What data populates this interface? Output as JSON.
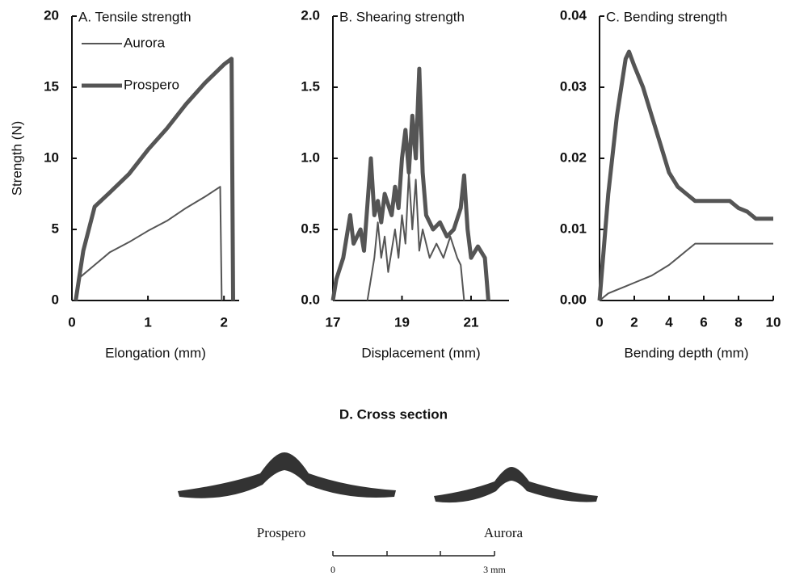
{
  "chart_data": [
    {
      "type": "line",
      "title": "A. Tensile strength",
      "x_label": "Elongation (mm)",
      "y_label": "Strength (N)",
      "xlim": [
        0,
        2.2
      ],
      "ylim": [
        0,
        20
      ],
      "xticks": [
        0,
        1,
        2
      ],
      "yticks": [
        0,
        5,
        10,
        15,
        20
      ],
      "legend": "upper left",
      "series": [
        {
          "name": "Aurora",
          "color": "#555555",
          "width": 2,
          "x": [
            0.05,
            0.1,
            0.3,
            0.5,
            0.75,
            1.0,
            1.25,
            1.5,
            1.75,
            1.95,
            1.97
          ],
          "values": [
            0,
            1.6,
            2.5,
            3.4,
            4.1,
            4.9,
            5.6,
            6.5,
            7.3,
            8.0,
            0
          ]
        },
        {
          "name": "Prospero",
          "color": "#555555",
          "width": 5,
          "x": [
            0.05,
            0.15,
            0.3,
            0.5,
            0.75,
            1.0,
            1.25,
            1.5,
            1.75,
            2.0,
            2.1,
            2.12
          ],
          "values": [
            0,
            3.5,
            6.6,
            7.6,
            8.9,
            10.6,
            12.1,
            13.8,
            15.3,
            16.6,
            17,
            0
          ]
        }
      ]
    },
    {
      "type": "line",
      "title": "B. Shearing strength",
      "x_label": "Displacement (mm)",
      "xlim": [
        17,
        22.1
      ],
      "ylim": [
        0,
        2
      ],
      "xticks": [
        17,
        19,
        21
      ],
      "yticks": [
        {
          "value": 0,
          "label": "0.0"
        },
        {
          "value": 0.5,
          "label": "0.5"
        },
        {
          "value": 1,
          "label": "1.0"
        },
        {
          "value": 1.5,
          "label": "1.5"
        },
        {
          "value": 2,
          "label": "2.0"
        }
      ],
      "series": [
        {
          "color": "#555555",
          "width": 2,
          "x": [
            18.0,
            18.2,
            18.3,
            18.4,
            18.5,
            18.6,
            18.8,
            18.9,
            19.0,
            19.1,
            19.2,
            19.3,
            19.4,
            19.5,
            19.6,
            19.8,
            20.0,
            20.2,
            20.4,
            20.6,
            20.7,
            20.8
          ],
          "values": [
            0,
            0.3,
            0.55,
            0.3,
            0.45,
            0.2,
            0.5,
            0.3,
            0.6,
            0.4,
            0.9,
            0.5,
            0.85,
            0.35,
            0.5,
            0.3,
            0.4,
            0.3,
            0.45,
            0.3,
            0.25,
            0
          ]
        },
        {
          "color": "#555555",
          "width": 5,
          "x": [
            17.0,
            17.1,
            17.3,
            17.5,
            17.6,
            17.8,
            17.9,
            18.1,
            18.2,
            18.3,
            18.4,
            18.5,
            18.7,
            18.8,
            18.9,
            19.0,
            19.1,
            19.2,
            19.3,
            19.4,
            19.5,
            19.6,
            19.7,
            19.9,
            20.1,
            20.3,
            20.5,
            20.7,
            20.8,
            20.9,
            21.0,
            21.2,
            21.4,
            21.5
          ],
          "values": [
            0,
            0.15,
            0.3,
            0.6,
            0.4,
            0.5,
            0.35,
            1.0,
            0.6,
            0.7,
            0.55,
            0.75,
            0.6,
            0.8,
            0.65,
            1.0,
            1.2,
            0.9,
            1.3,
            1.0,
            1.63,
            0.9,
            0.6,
            0.5,
            0.55,
            0.45,
            0.5,
            0.65,
            0.88,
            0.5,
            0.3,
            0.38,
            0.3,
            0
          ]
        }
      ]
    },
    {
      "type": "line",
      "title": "C. Bending strength",
      "x_label": "Bending depth (mm)",
      "xlim": [
        0,
        10
      ],
      "ylim": [
        0,
        0.04
      ],
      "xticks": [
        0,
        2,
        4,
        6,
        8,
        10
      ],
      "yticks": [
        {
          "value": 0,
          "label": "0.00"
        },
        {
          "value": 0.01,
          "label": "0.01"
        },
        {
          "value": 0.02,
          "label": "0.02"
        },
        {
          "value": 0.03,
          "label": "0.03"
        },
        {
          "value": 0.04,
          "label": "0.04"
        }
      ],
      "series": [
        {
          "color": "#555555",
          "width": 2,
          "x": [
            0,
            0.5,
            1,
            1.5,
            2,
            3,
            4,
            4.5,
            5,
            5.5,
            6,
            7,
            8,
            9,
            10
          ],
          "values": [
            0,
            0.001,
            0.0015,
            0.002,
            0.0025,
            0.0035,
            0.005,
            0.006,
            0.007,
            0.008,
            0.008,
            0.008,
            0.008,
            0.008,
            0.008
          ]
        },
        {
          "color": "#555555",
          "width": 5,
          "x": [
            0,
            0.5,
            1.0,
            1.5,
            1.7,
            2.0,
            2.5,
            3,
            3.5,
            4,
            4.5,
            5,
            5.5,
            6,
            7,
            7.5,
            8,
            8.5,
            9,
            10
          ],
          "values": [
            0,
            0.015,
            0.026,
            0.034,
            0.035,
            0.033,
            0.03,
            0.026,
            0.022,
            0.018,
            0.016,
            0.015,
            0.014,
            0.014,
            0.014,
            0.014,
            0.013,
            0.0125,
            0.0115,
            0.0115
          ]
        }
      ]
    }
  ],
  "cross_section": {
    "title": "D. Cross section",
    "specimens": [
      "Prospero",
      "Aurora"
    ],
    "scale_labels": [
      "0",
      "3 mm"
    ]
  }
}
